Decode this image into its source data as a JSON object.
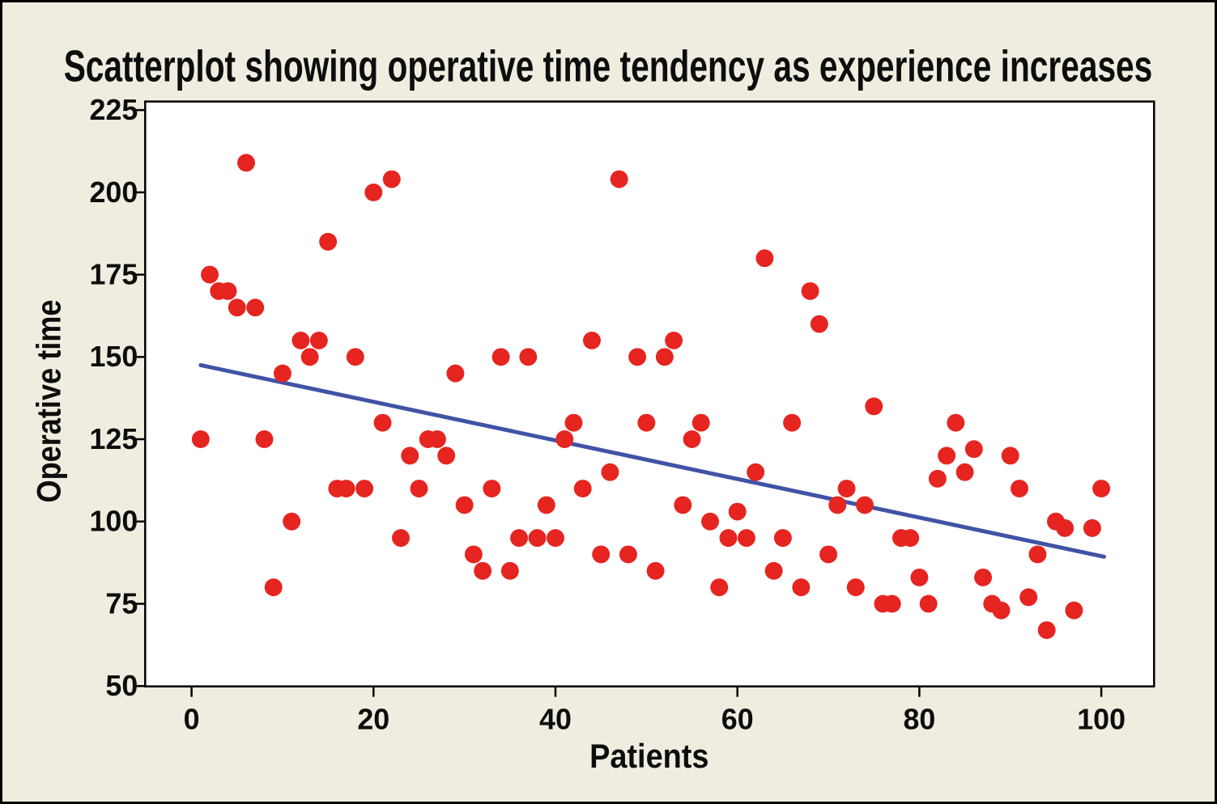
{
  "figure": {
    "background_color": "#f0ede0",
    "plot_background_color": "#ffffff",
    "frame_color": "#000000"
  },
  "chart_data": {
    "type": "scatter",
    "title": "Scatterplot showing operative time tendency as experience increases",
    "xlabel": "Patients",
    "ylabel": "Operative time",
    "x_ticks": [
      0,
      20,
      40,
      60,
      80,
      100
    ],
    "y_ticks": [
      50,
      75,
      100,
      125,
      150,
      175,
      200,
      225
    ],
    "xlim": [
      -5.1,
      105.8
    ],
    "ylim": [
      49.9,
      227.6
    ],
    "grid": false,
    "legend_position": "none",
    "point_color": "#e62420",
    "trend_color": "#4053a6",
    "trend_line": {
      "x1": 1,
      "y1": 147.5,
      "x2": 100.3,
      "y2": 89.3
    },
    "points": [
      [
        1,
        125
      ],
      [
        2,
        175
      ],
      [
        3,
        170
      ],
      [
        4,
        170
      ],
      [
        5,
        165
      ],
      [
        6,
        209
      ],
      [
        7,
        165
      ],
      [
        8,
        125
      ],
      [
        9,
        80
      ],
      [
        10,
        145
      ],
      [
        11,
        100
      ],
      [
        12,
        155
      ],
      [
        13,
        150
      ],
      [
        14,
        155
      ],
      [
        15,
        185
      ],
      [
        16,
        110
      ],
      [
        17,
        110
      ],
      [
        18,
        150
      ],
      [
        19,
        110
      ],
      [
        20,
        200
      ],
      [
        21,
        130
      ],
      [
        22,
        204
      ],
      [
        23,
        95
      ],
      [
        24,
        120
      ],
      [
        25,
        110
      ],
      [
        26,
        125
      ],
      [
        27,
        125
      ],
      [
        28,
        120
      ],
      [
        29,
        145
      ],
      [
        30,
        105
      ],
      [
        31,
        90
      ],
      [
        32,
        85
      ],
      [
        33,
        110
      ],
      [
        34,
        150
      ],
      [
        35,
        85
      ],
      [
        36,
        95
      ],
      [
        37,
        150
      ],
      [
        38,
        95
      ],
      [
        39,
        105
      ],
      [
        40,
        95
      ],
      [
        41,
        125
      ],
      [
        42,
        130
      ],
      [
        43,
        110
      ],
      [
        44,
        155
      ],
      [
        45,
        90
      ],
      [
        46,
        115
      ],
      [
        47,
        204
      ],
      [
        48,
        90
      ],
      [
        49,
        150
      ],
      [
        50,
        130
      ],
      [
        51,
        85
      ],
      [
        52,
        150
      ],
      [
        53,
        155
      ],
      [
        54,
        105
      ],
      [
        55,
        125
      ],
      [
        56,
        130
      ],
      [
        57,
        100
      ],
      [
        58,
        80
      ],
      [
        59,
        95
      ],
      [
        60,
        103
      ],
      [
        61,
        95
      ],
      [
        62,
        115
      ],
      [
        63,
        180
      ],
      [
        64,
        85
      ],
      [
        65,
        95
      ],
      [
        66,
        130
      ],
      [
        67,
        80
      ],
      [
        68,
        170
      ],
      [
        69,
        160
      ],
      [
        70,
        90
      ],
      [
        71,
        105
      ],
      [
        72,
        110
      ],
      [
        73,
        80
      ],
      [
        74,
        105
      ],
      [
        75,
        135
      ],
      [
        76,
        75
      ],
      [
        77,
        75
      ],
      [
        78,
        95
      ],
      [
        79,
        95
      ],
      [
        80,
        83
      ],
      [
        81,
        75
      ],
      [
        82,
        113
      ],
      [
        83,
        120
      ],
      [
        84,
        130
      ],
      [
        85,
        115
      ],
      [
        86,
        122
      ],
      [
        87,
        83
      ],
      [
        88,
        75
      ],
      [
        89,
        73
      ],
      [
        90,
        120
      ],
      [
        91,
        110
      ],
      [
        92,
        77
      ],
      [
        93,
        90
      ],
      [
        94,
        67
      ],
      [
        95,
        100
      ],
      [
        96,
        98
      ],
      [
        97,
        73
      ],
      [
        99,
        98
      ],
      [
        100,
        110
      ]
    ]
  }
}
